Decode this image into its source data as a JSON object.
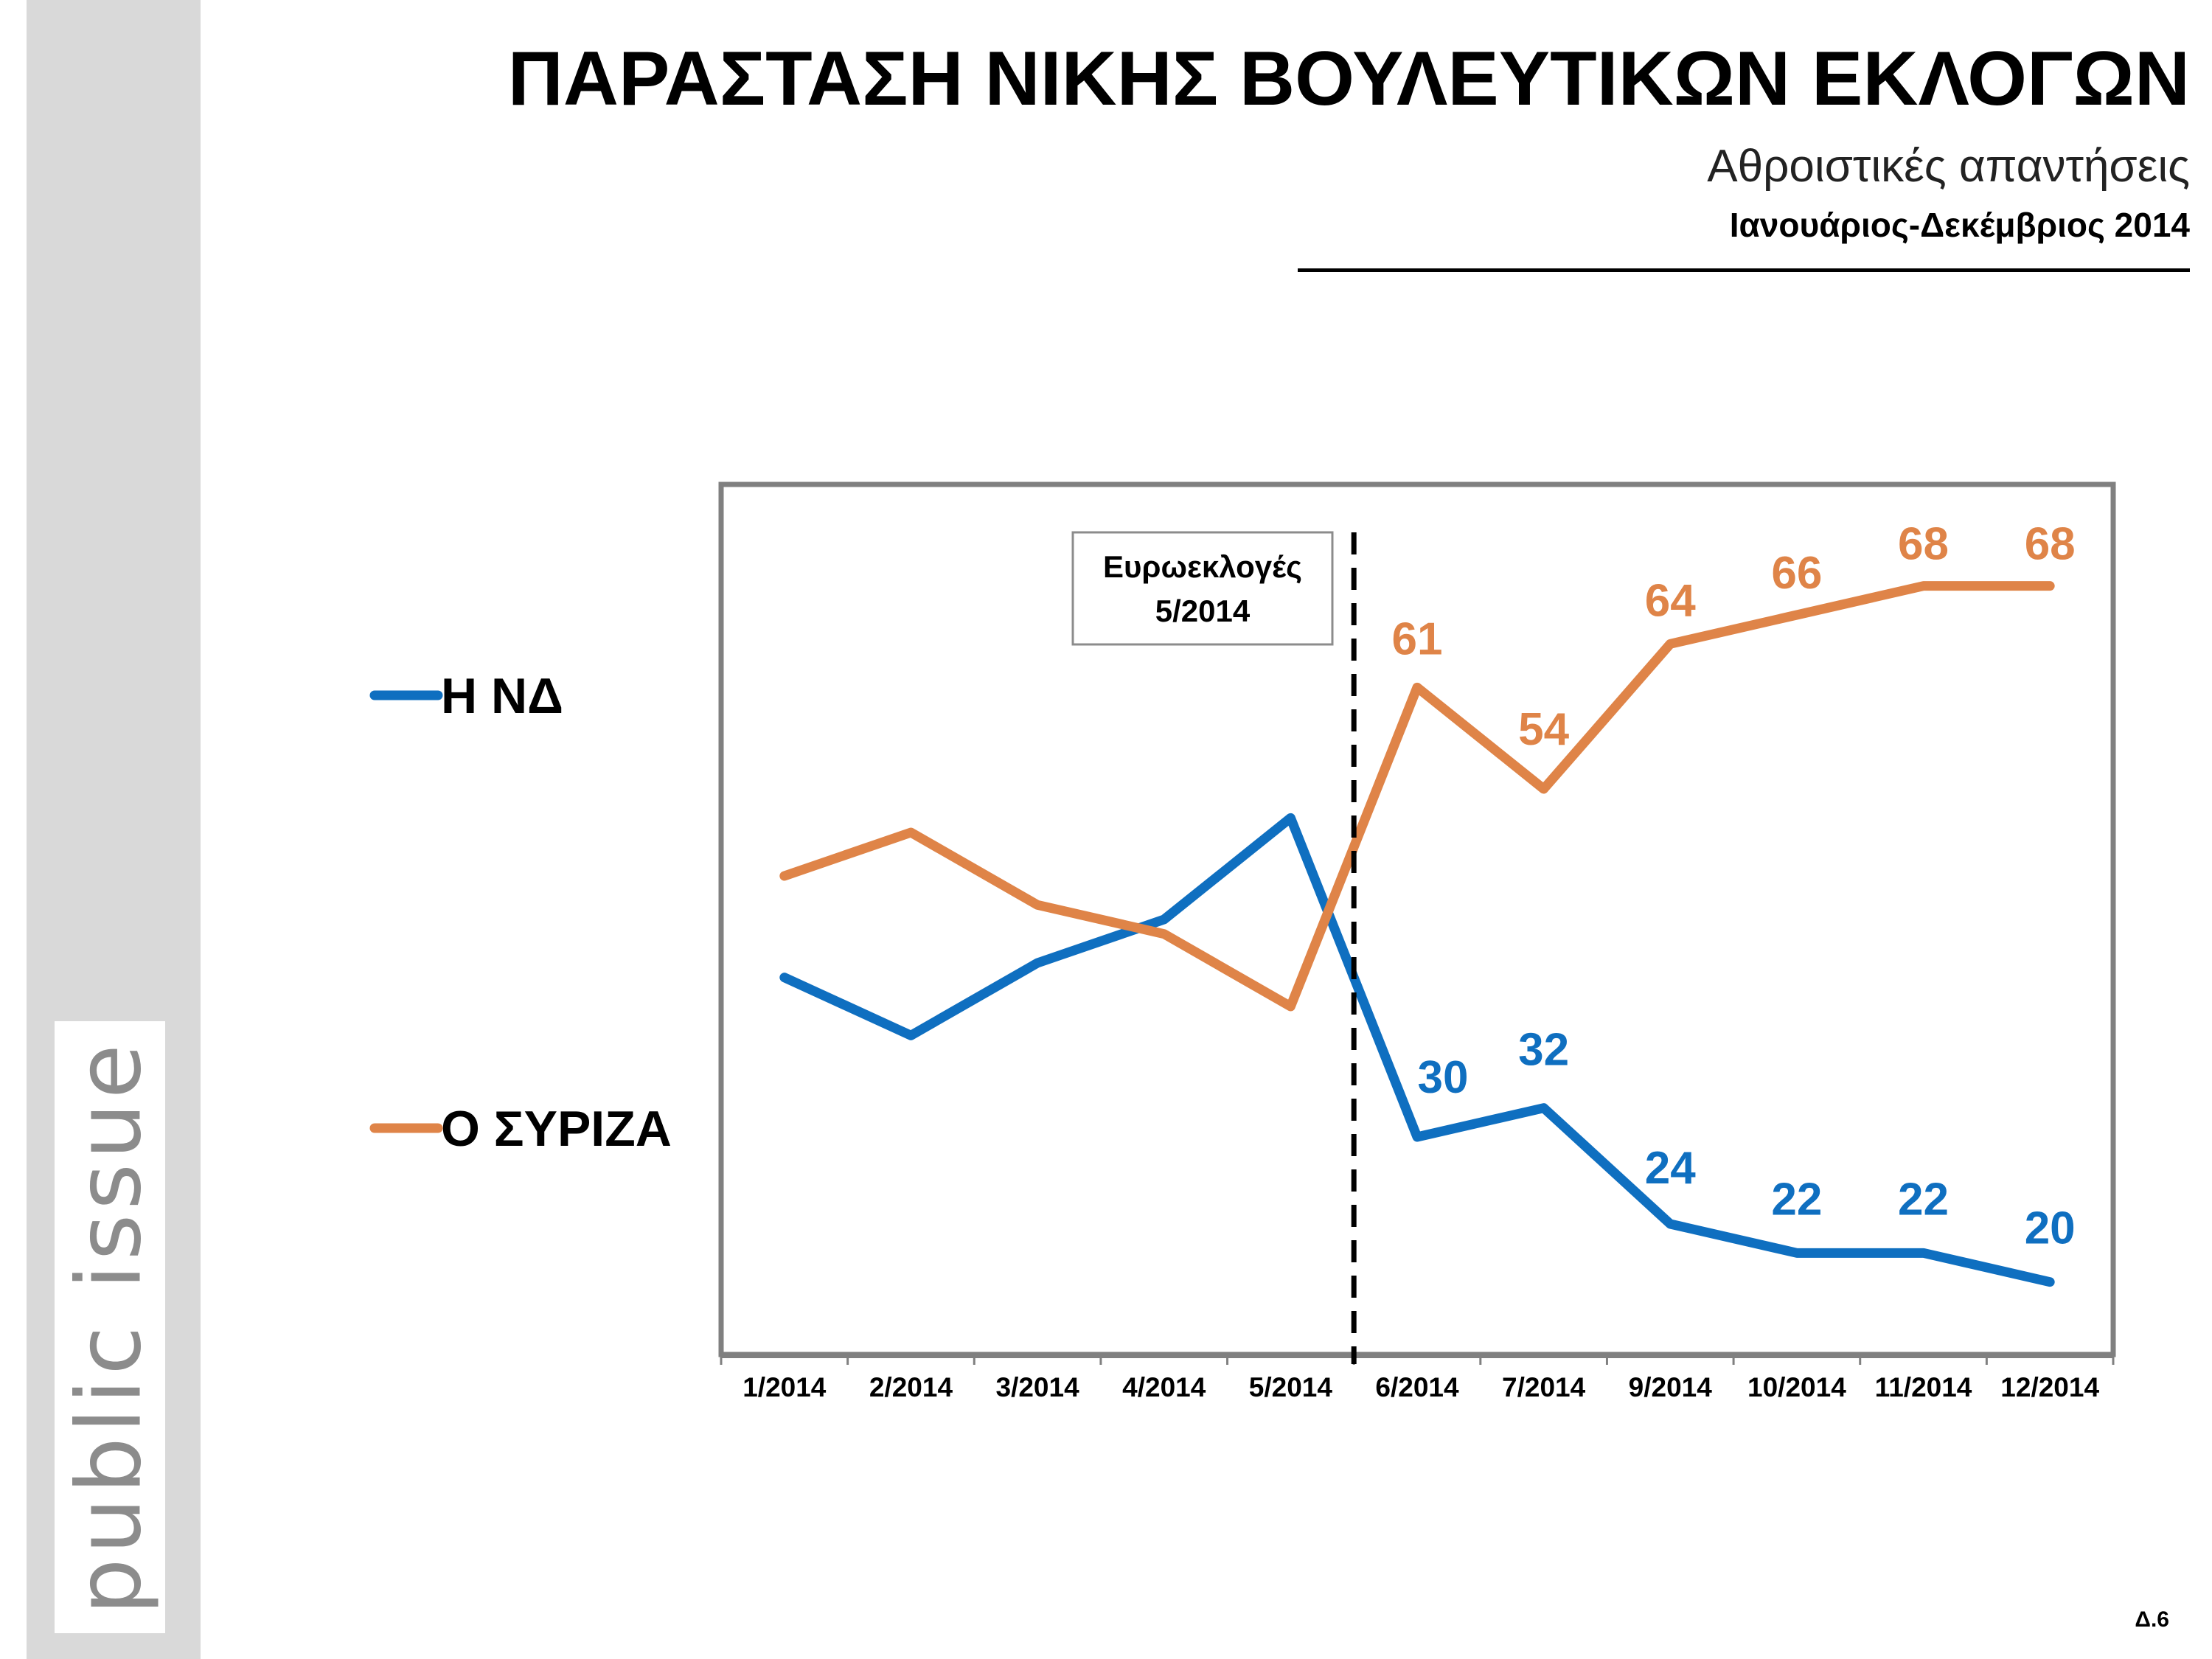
{
  "page": {
    "title": "ΠΑΡΑΣΤΑΣΗ ΝΙΚΗΣ ΒΟΥΛΕΥΤΙΚΩΝ ΕΚΛΟΓΩΝ",
    "subtitle": "Αθροιστικές απαντήσεις",
    "period": "Ιανουάριος-Δεκέμβριος 2014",
    "brand": "public issue",
    "slide_number": "Δ.6"
  },
  "chart_data": {
    "type": "line",
    "categories": [
      "1/2014",
      "2/2014",
      "3/2014",
      "4/2014",
      "5/2014",
      "6/2014",
      "7/2014",
      "9/2014",
      "10/2014",
      "11/2014",
      "12/2014"
    ],
    "series": [
      {
        "name": "Η ΝΔ",
        "color": "#0f6fc0",
        "values": [
          41,
          37,
          42,
          45,
          52,
          30,
          32,
          24,
          22,
          22,
          20
        ],
        "data_labels": [
          null,
          null,
          null,
          null,
          null,
          "30",
          "32",
          "24",
          "22",
          "22",
          "20"
        ]
      },
      {
        "name": "Ο ΣΥΡΙΖΑ",
        "color": "#df8448",
        "values": [
          48,
          51,
          46,
          44,
          39,
          61,
          54,
          64,
          66,
          68,
          68
        ],
        "data_labels": [
          null,
          null,
          null,
          null,
          null,
          "61",
          "54",
          "64",
          "66",
          "68",
          "68"
        ]
      }
    ],
    "annotation": {
      "lines": [
        "Ευρωεκλογές",
        "5/2014"
      ],
      "position": "between 5/2014 and 6/2014",
      "marker": "dashed vertical line"
    },
    "ylim": [
      15,
      75
    ],
    "grid": false,
    "legend": "left"
  }
}
